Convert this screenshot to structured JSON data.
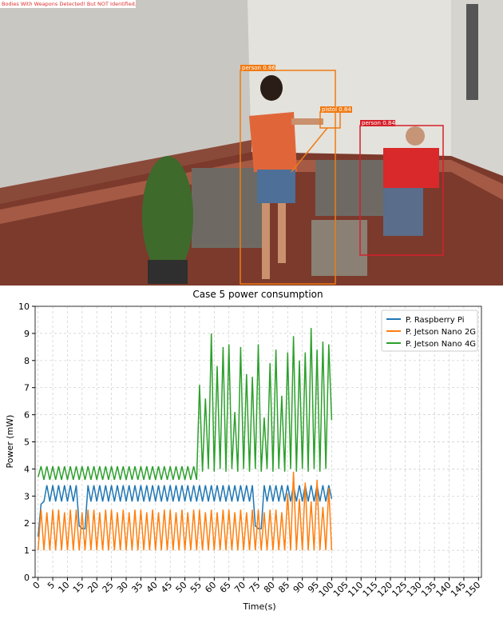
{
  "image": {
    "banner": "Bodies With Weapons Detected! But NOT Identified.",
    "detections": [
      "person 0.86",
      "pistol 0.84",
      "person 0.84"
    ]
  },
  "chart_data": {
    "type": "line",
    "title": "Case 5 power consumption",
    "x_label": "Time(s)",
    "y_label": "Power (mW)",
    "xlim": [
      -1,
      151
    ],
    "ylim": [
      0,
      10
    ],
    "grid": true,
    "legend": "upper right",
    "xticks": [
      0,
      5,
      10,
      15,
      20,
      25,
      30,
      35,
      40,
      45,
      50,
      55,
      60,
      65,
      70,
      75,
      80,
      85,
      90,
      95,
      100,
      105,
      110,
      115,
      120,
      125,
      130,
      135,
      140,
      145,
      150
    ],
    "yticks": [
      0,
      1,
      2,
      3,
      4,
      5,
      6,
      7,
      8,
      9,
      10
    ],
    "x": [
      0,
      1,
      2,
      3,
      4,
      5,
      6,
      7,
      8,
      9,
      10,
      11,
      12,
      13,
      14,
      15,
      16,
      17,
      18,
      19,
      20,
      21,
      22,
      23,
      24,
      25,
      26,
      27,
      28,
      29,
      30,
      31,
      32,
      33,
      34,
      35,
      36,
      37,
      38,
      39,
      40,
      41,
      42,
      43,
      44,
      45,
      46,
      47,
      48,
      49,
      50,
      51,
      52,
      53,
      54,
      55,
      56,
      57,
      58,
      59,
      60,
      61,
      62,
      63,
      64,
      65,
      66,
      67,
      68,
      69,
      70,
      71,
      72,
      73,
      74,
      75,
      76,
      77,
      78,
      79,
      80,
      81,
      82,
      83,
      84,
      85,
      86,
      87,
      88,
      89,
      90,
      91,
      92,
      93,
      94,
      95,
      96,
      97,
      98,
      99,
      100
    ],
    "series": [
      {
        "name": "P. Raspberry Pi",
        "color": "#1f77b4",
        "values": [
          1.5,
          2.7,
          2.8,
          3.4,
          2.8,
          3.4,
          2.8,
          3.4,
          2.8,
          3.4,
          2.8,
          3.4,
          2.8,
          3.4,
          1.9,
          1.8,
          1.8,
          3.4,
          2.8,
          3.4,
          2.8,
          3.4,
          2.8,
          3.4,
          2.8,
          3.4,
          2.8,
          3.4,
          2.8,
          3.4,
          2.8,
          3.4,
          2.8,
          3.4,
          2.8,
          3.4,
          2.8,
          3.4,
          2.8,
          3.4,
          2.8,
          3.4,
          2.8,
          3.4,
          2.8,
          3.4,
          2.8,
          3.4,
          2.8,
          3.4,
          2.8,
          3.4,
          2.8,
          3.4,
          2.8,
          3.4,
          2.8,
          3.4,
          2.8,
          3.4,
          2.8,
          3.4,
          2.8,
          3.4,
          2.8,
          3.4,
          2.8,
          3.4,
          2.8,
          3.4,
          2.8,
          3.4,
          2.8,
          3.4,
          1.9,
          1.8,
          1.8,
          3.4,
          2.8,
          3.4,
          2.8,
          3.4,
          2.8,
          3.4,
          2.8,
          3.4,
          2.8,
          3.4,
          2.8,
          3.4,
          2.8,
          3.4,
          2.8,
          3.4,
          2.8,
          3.4,
          2.8,
          3.4,
          2.8,
          3.4,
          2.9
        ]
      },
      {
        "name": "P. Jetson Nano 2G",
        "color": "#ff7f0e",
        "values": [
          1.0,
          2.5,
          1.0,
          2.4,
          1.0,
          2.5,
          1.0,
          2.5,
          1.0,
          2.4,
          1.0,
          2.5,
          1.0,
          2.5,
          1.0,
          2.4,
          1.0,
          2.5,
          1.0,
          2.5,
          1.0,
          2.4,
          1.0,
          2.5,
          1.0,
          2.5,
          1.0,
          2.4,
          1.0,
          2.5,
          1.0,
          2.4,
          1.0,
          2.5,
          1.0,
          2.5,
          1.0,
          2.4,
          1.0,
          2.5,
          1.0,
          2.4,
          1.0,
          2.5,
          1.0,
          2.5,
          1.0,
          2.4,
          1.0,
          2.5,
          1.0,
          2.4,
          1.0,
          2.5,
          1.0,
          2.5,
          1.0,
          2.4,
          1.0,
          2.5,
          1.0,
          2.4,
          1.0,
          2.5,
          1.0,
          2.5,
          1.0,
          2.4,
          1.0,
          2.5,
          1.0,
          2.4,
          1.0,
          2.5,
          1.0,
          2.5,
          1.0,
          2.4,
          1.0,
          2.5,
          1.0,
          2.5,
          1.0,
          2.4,
          1.0,
          3.1,
          1.0,
          3.9,
          1.0,
          2.9,
          1.0,
          3.5,
          1.0,
          2.8,
          1.0,
          3.6,
          1.0,
          2.6,
          1.0,
          3.3,
          1.0
        ]
      },
      {
        "name": "P. Jetson Nano 4G",
        "color": "#2ca02c",
        "values": [
          3.7,
          4.1,
          3.6,
          4.1,
          3.6,
          4.1,
          3.6,
          4.1,
          3.6,
          4.1,
          3.6,
          4.1,
          3.6,
          4.1,
          3.6,
          4.1,
          3.6,
          4.1,
          3.6,
          4.1,
          3.6,
          4.1,
          3.6,
          4.1,
          3.6,
          4.1,
          3.6,
          4.1,
          3.6,
          4.1,
          3.6,
          4.1,
          3.6,
          4.1,
          3.6,
          4.1,
          3.6,
          4.1,
          3.6,
          4.1,
          3.6,
          4.1,
          3.6,
          4.1,
          3.6,
          4.1,
          3.6,
          4.1,
          3.6,
          4.1,
          3.6,
          4.1,
          3.6,
          4.1,
          3.6,
          7.1,
          3.9,
          6.6,
          4.0,
          9.0,
          3.9,
          7.8,
          4.0,
          8.5,
          3.9,
          8.6,
          4.0,
          6.1,
          3.9,
          8.5,
          4.0,
          7.5,
          3.9,
          7.4,
          4.0,
          8.6,
          3.9,
          5.9,
          4.0,
          7.9,
          3.9,
          8.4,
          4.0,
          6.7,
          3.9,
          8.3,
          4.0,
          8.9,
          3.9,
          8.0,
          4.0,
          8.3,
          3.9,
          9.2,
          4.0,
          8.4,
          3.9,
          8.7,
          4.0,
          8.6,
          5.8
        ]
      }
    ]
  }
}
